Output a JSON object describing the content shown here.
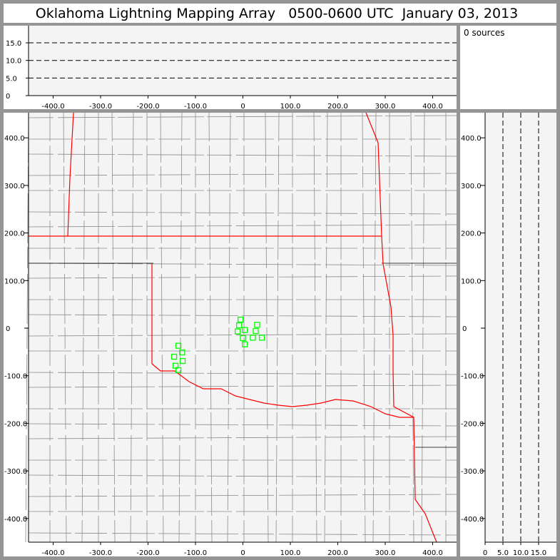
{
  "title": "Oklahoma Lightning Mapping Array   0500-0600 UTC  January 03, 2013",
  "sources_label": "0 sources",
  "colors": {
    "frame": "#959595",
    "plot_bg": "#f4f4f4",
    "state_border": "#ff0000",
    "county": "#8c8c8c",
    "station": "#00ff00"
  },
  "chart_data": [
    {
      "type": "scatter",
      "panel": "altitude-vs-east-west",
      "xlim": [
        -450,
        450
      ],
      "ylim": [
        0,
        20
      ],
      "xticks": [
        "-400.0",
        "-300.0",
        "-200.0",
        "-100.0",
        "0",
        "100.0",
        "200.0",
        "300.0",
        "400.0"
      ],
      "xtick_values": [
        -400,
        -300,
        -200,
        -100,
        0,
        100,
        200,
        300,
        400
      ],
      "yticks": [
        "0",
        "5.0",
        "10.0",
        "15.0"
      ],
      "ytick_values": [
        0,
        5,
        10,
        15
      ],
      "dashed_lines_at": [
        5,
        10,
        15
      ],
      "points": []
    },
    {
      "type": "scatter",
      "panel": "plan-view-map",
      "xlim": [
        -450,
        450
      ],
      "ylim": [
        -450,
        450
      ],
      "xticks": [
        "-400.0",
        "-300.0",
        "-200.0",
        "-100.0",
        "0",
        "100.0",
        "200.0",
        "300.0",
        "400.0"
      ],
      "xtick_values": [
        -400,
        -300,
        -200,
        -100,
        0,
        100,
        200,
        300,
        400
      ],
      "yticks": [
        "400.0",
        "300.0",
        "200.0",
        "100.0",
        "0",
        "-100.0",
        "-200.0",
        "-300.0",
        "-400.0"
      ],
      "ytick_values": [
        400,
        300,
        200,
        100,
        0,
        -100,
        -200,
        -300,
        -400
      ],
      "stations": [
        [
          -136,
          -37
        ],
        [
          -128,
          -51
        ],
        [
          -145,
          -60
        ],
        [
          -127,
          -69
        ],
        [
          -142,
          -79
        ],
        [
          -136,
          -88
        ],
        [
          -5,
          18
        ],
        [
          -8,
          6
        ],
        [
          -11,
          -7
        ],
        [
          4,
          -4
        ],
        [
          0,
          -21
        ],
        [
          4,
          -34
        ],
        [
          30,
          7
        ],
        [
          27,
          -6
        ],
        [
          21,
          -20
        ],
        [
          40,
          -20
        ]
      ],
      "points": []
    },
    {
      "type": "scatter",
      "panel": "altitude-vs-north-south",
      "xlim": [
        0,
        20
      ],
      "ylim": [
        -450,
        450
      ],
      "xticks": [
        "0",
        "5.0",
        "10.0",
        "15.0"
      ],
      "xtick_values": [
        0,
        5,
        10,
        15
      ],
      "dashed_lines_at": [
        5,
        10,
        15
      ],
      "points": []
    }
  ]
}
